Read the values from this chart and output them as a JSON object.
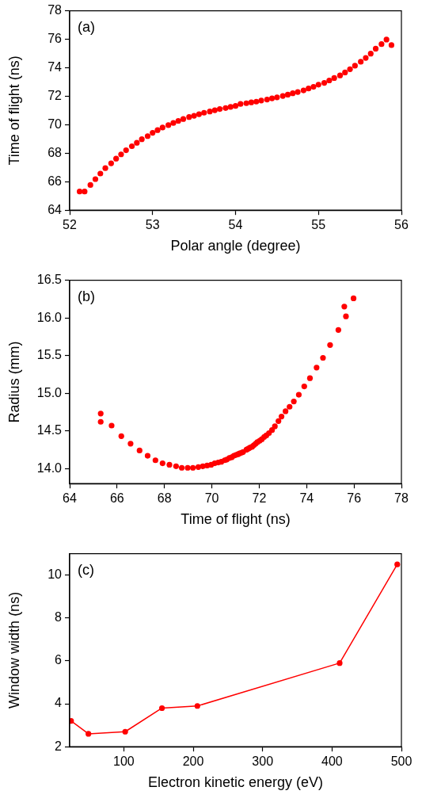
{
  "chart_data": [
    {
      "type": "scatter",
      "xlabel": "Polar angle (degree)",
      "ylabel": "Time of flight (ns)",
      "annotations": [
        "(a)"
      ],
      "xlim": [
        52,
        56
      ],
      "xticks": [
        52,
        53,
        54,
        55,
        56
      ],
      "ylim": [
        64,
        78
      ],
      "yticks": [
        64,
        66,
        68,
        70,
        72,
        74,
        76,
        78
      ],
      "marker": "circle",
      "color": "#ff0000",
      "x": [
        52.12,
        52.18,
        52.25,
        52.31,
        52.37,
        52.43,
        52.5,
        52.56,
        52.62,
        52.68,
        52.75,
        52.81,
        52.87,
        52.94,
        53.0,
        53.06,
        53.12,
        53.19,
        53.25,
        53.31,
        53.37,
        53.44,
        53.5,
        53.56,
        53.62,
        53.69,
        53.75,
        53.81,
        53.88,
        53.94,
        54.0,
        54.06,
        54.13,
        54.19,
        54.25,
        54.31,
        54.38,
        54.44,
        54.5,
        54.57,
        54.63,
        54.69,
        54.75,
        54.82,
        54.88,
        54.94,
        55.0,
        55.07,
        55.13,
        55.19,
        55.26,
        55.32,
        55.38,
        55.44,
        55.51,
        55.57,
        55.63,
        55.69,
        55.76,
        55.82,
        55.88
      ],
      "values": [
        65.31,
        65.31,
        65.77,
        66.18,
        66.57,
        66.95,
        67.29,
        67.62,
        67.92,
        68.21,
        68.49,
        68.73,
        68.98,
        69.2,
        69.43,
        69.62,
        69.8,
        69.97,
        70.12,
        70.27,
        70.4,
        70.54,
        70.63,
        70.74,
        70.84,
        70.93,
        71.02,
        71.1,
        71.17,
        71.25,
        71.32,
        71.46,
        71.51,
        71.57,
        71.62,
        71.7,
        71.77,
        71.85,
        71.92,
        72.02,
        72.11,
        72.21,
        72.3,
        72.41,
        72.54,
        72.66,
        72.81,
        72.94,
        73.11,
        73.28,
        73.46,
        73.67,
        73.9,
        74.14,
        74.42,
        74.69,
        74.99,
        75.34,
        75.66,
        75.98,
        75.59
      ]
    },
    {
      "type": "scatter",
      "xlabel": "Time of flight (ns)",
      "ylabel": "Radius (mm)",
      "annotations": [
        "(b)"
      ],
      "xlim": [
        64,
        78
      ],
      "xticks": [
        64,
        66,
        68,
        70,
        72,
        74,
        76,
        78
      ],
      "ylim": [
        13.8,
        16.5
      ],
      "yticks": [
        {
          "value": 14,
          "label": "14.0"
        },
        14.5,
        {
          "value": 15,
          "label": "15.0"
        },
        15.5,
        {
          "value": 16,
          "label": "16.0"
        },
        16.5
      ],
      "marker": "circle",
      "color": "#ff0000",
      "x": [
        65.31,
        65.31,
        65.77,
        66.18,
        66.57,
        66.95,
        67.29,
        67.62,
        67.92,
        68.21,
        68.49,
        68.73,
        68.98,
        69.2,
        69.43,
        69.62,
        69.8,
        69.97,
        70.12,
        70.27,
        70.4,
        70.54,
        70.63,
        70.74,
        70.84,
        70.93,
        71.02,
        71.1,
        71.17,
        71.25,
        71.32,
        71.46,
        71.51,
        71.57,
        71.62,
        71.7,
        71.77,
        71.85,
        71.92,
        72.02,
        72.11,
        72.21,
        72.3,
        72.41,
        72.54,
        72.66,
        72.81,
        72.94,
        73.11,
        73.28,
        73.46,
        73.67,
        73.9,
        74.14,
        74.42,
        74.69,
        74.99,
        75.34,
        75.66,
        75.98,
        75.59
      ],
      "values": [
        14.73,
        14.62,
        14.57,
        14.43,
        14.33,
        14.24,
        14.17,
        14.11,
        14.07,
        14.05,
        14.03,
        14.01,
        14.01,
        14.01,
        14.02,
        14.03,
        14.04,
        14.05,
        14.07,
        14.08,
        14.09,
        14.11,
        14.12,
        14.14,
        14.15,
        14.17,
        14.18,
        14.19,
        14.2,
        14.21,
        14.22,
        14.25,
        14.26,
        14.27,
        14.28,
        14.29,
        14.31,
        14.33,
        14.35,
        14.37,
        14.39,
        14.42,
        14.44,
        14.47,
        14.51,
        14.56,
        14.63,
        14.69,
        14.76,
        14.82,
        14.89,
        14.98,
        15.09,
        15.2,
        15.34,
        15.47,
        15.64,
        15.84,
        16.02,
        16.26,
        16.15
      ]
    },
    {
      "type": "line",
      "xlabel": "Electron kinetic energy (eV)",
      "ylabel": "Window width (ns)",
      "annotations": [
        "(c)"
      ],
      "xlim": [
        22,
        500
      ],
      "xticks": [
        100,
        200,
        300,
        400,
        500
      ],
      "ylim": [
        2,
        11
      ],
      "yticks": [
        2,
        4,
        6,
        8,
        10
      ],
      "marker": "circle",
      "line_style": "solid",
      "color": "#ff0000",
      "x": [
        24,
        49,
        102,
        155,
        206,
        411,
        494
      ],
      "values": [
        3.2,
        2.6,
        2.7,
        3.8,
        3.9,
        5.9,
        10.5
      ]
    }
  ]
}
